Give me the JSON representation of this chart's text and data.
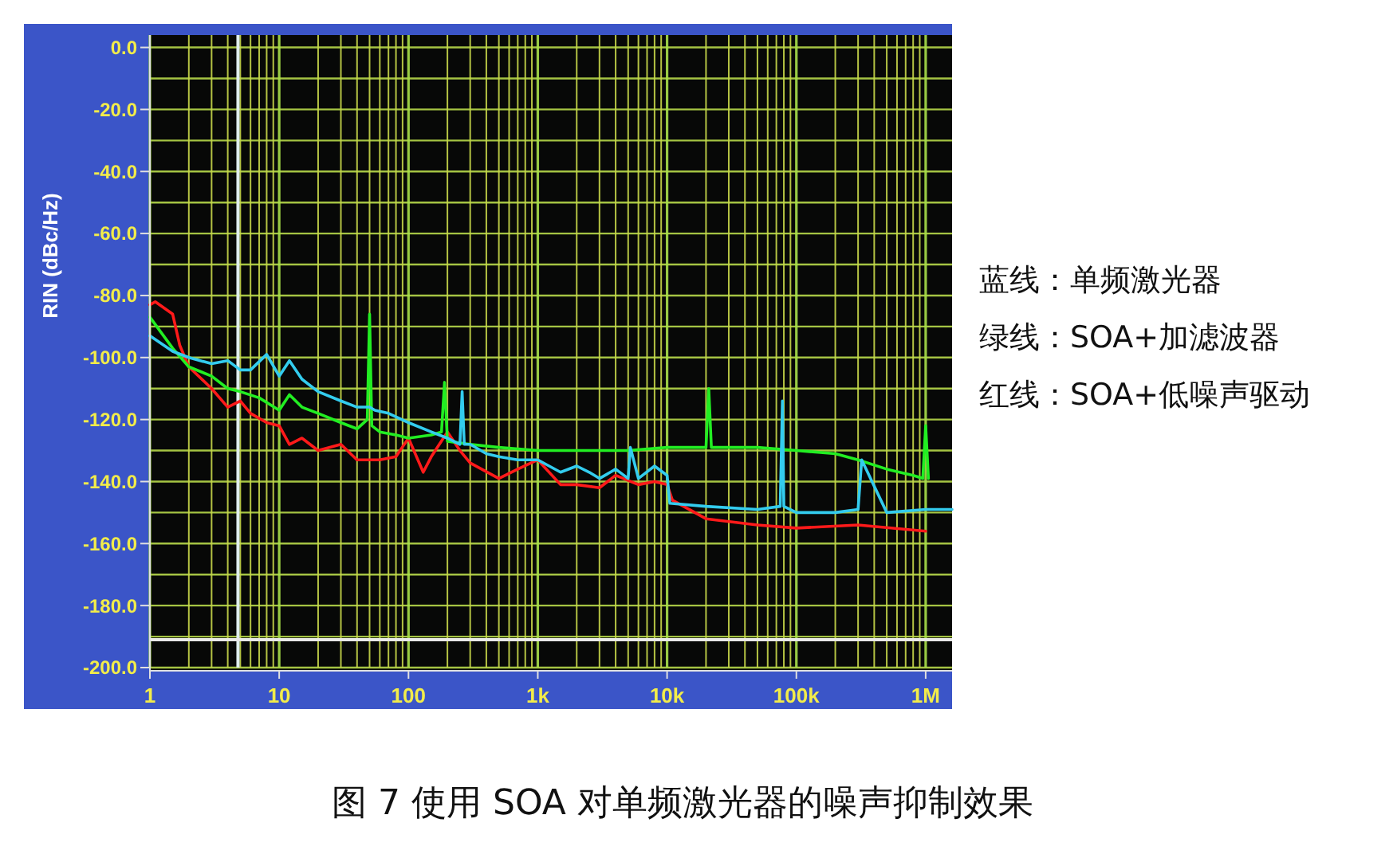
{
  "chart_data": {
    "type": "line",
    "title": "图 7  使用 SOA 对单频激光器的噪声抑制效果",
    "ylabel": "RIN (dBc/Hz)",
    "log": "x",
    "grid": true,
    "line_style": "solid",
    "marker": "none",
    "xlim": [
      1,
      1600000
    ],
    "ylim": [
      -200,
      4
    ],
    "xticks": [
      {
        "value": 1,
        "label": "1"
      },
      {
        "value": 2,
        "label": null
      },
      {
        "value": 3,
        "label": null
      },
      {
        "value": 4,
        "label": null
      },
      {
        "value": 5,
        "label": null
      },
      {
        "value": 6,
        "label": null
      },
      {
        "value": 7,
        "label": null
      },
      {
        "value": 8,
        "label": null
      },
      {
        "value": 9,
        "label": null
      },
      {
        "value": 10,
        "label": "10"
      },
      {
        "value": 20,
        "label": null
      },
      {
        "value": 30,
        "label": null
      },
      {
        "value": 40,
        "label": null
      },
      {
        "value": 50,
        "label": null
      },
      {
        "value": 60,
        "label": null
      },
      {
        "value": 70,
        "label": null
      },
      {
        "value": 80,
        "label": null
      },
      {
        "value": 90,
        "label": null
      },
      {
        "value": 100,
        "label": "100"
      },
      {
        "value": 200,
        "label": null
      },
      {
        "value": 300,
        "label": null
      },
      {
        "value": 400,
        "label": null
      },
      {
        "value": 500,
        "label": null
      },
      {
        "value": 600,
        "label": null
      },
      {
        "value": 700,
        "label": null
      },
      {
        "value": 800,
        "label": null
      },
      {
        "value": 900,
        "label": null
      },
      {
        "value": 1000,
        "label": "1k"
      },
      {
        "value": 2000,
        "label": null
      },
      {
        "value": 3000,
        "label": null
      },
      {
        "value": 4000,
        "label": null
      },
      {
        "value": 5000,
        "label": null
      },
      {
        "value": 6000,
        "label": null
      },
      {
        "value": 7000,
        "label": null
      },
      {
        "value": 8000,
        "label": null
      },
      {
        "value": 9000,
        "label": null
      },
      {
        "value": 10000,
        "label": "10k"
      },
      {
        "value": 20000,
        "label": null
      },
      {
        "value": 30000,
        "label": null
      },
      {
        "value": 40000,
        "label": null
      },
      {
        "value": 50000,
        "label": null
      },
      {
        "value": 60000,
        "label": null
      },
      {
        "value": 70000,
        "label": null
      },
      {
        "value": 80000,
        "label": null
      },
      {
        "value": 90000,
        "label": null
      },
      {
        "value": 100000,
        "label": "100k"
      },
      {
        "value": 200000,
        "label": null
      },
      {
        "value": 300000,
        "label": null
      },
      {
        "value": 400000,
        "label": null
      },
      {
        "value": 500000,
        "label": null
      },
      {
        "value": 600000,
        "label": null
      },
      {
        "value": 700000,
        "label": null
      },
      {
        "value": 800000,
        "label": null
      },
      {
        "value": 900000,
        "label": null
      },
      {
        "value": 1000000,
        "label": "1M"
      }
    ],
    "yticks": [
      {
        "value": 0,
        "label": "0.0"
      },
      {
        "value": -10,
        "label": null
      },
      {
        "value": -20,
        "label": "-20.0"
      },
      {
        "value": -30,
        "label": null
      },
      {
        "value": -40,
        "label": "-40.0"
      },
      {
        "value": -50,
        "label": null
      },
      {
        "value": -60,
        "label": "-60.0"
      },
      {
        "value": -70,
        "label": null
      },
      {
        "value": -80,
        "label": "-80.0"
      },
      {
        "value": -90,
        "label": null
      },
      {
        "value": -100,
        "label": "-100.0"
      },
      {
        "value": -110,
        "label": null
      },
      {
        "value": -120,
        "label": "-120.0"
      },
      {
        "value": -130,
        "label": null
      },
      {
        "value": -140,
        "label": "-140.0"
      },
      {
        "value": -150,
        "label": null
      },
      {
        "value": -160,
        "label": "-160.0"
      },
      {
        "value": -170,
        "label": null
      },
      {
        "value": -180,
        "label": "-180.0"
      },
      {
        "value": -190,
        "label": null
      },
      {
        "value": -200,
        "label": "-200.0"
      }
    ],
    "ref_lines": [
      {
        "axis": "x",
        "value": 4.8,
        "color": "#dfeeee"
      },
      {
        "axis": "y",
        "value": -191,
        "color": "#e8e8e8"
      }
    ],
    "annotations": [
      "蓝线：单频激光器",
      "绿线：SOA+加滤波器",
      "红线：SOA+低噪声驱动"
    ],
    "series": [
      {
        "color": "#ff1a1a",
        "x": [
          1,
          1.1,
          1.5,
          1.7,
          2,
          3,
          4,
          5,
          6,
          8,
          10,
          12,
          15,
          20,
          30,
          40,
          60,
          80,
          100,
          110,
          130,
          150,
          200,
          250,
          300,
          500,
          700,
          1000,
          1500,
          2000,
          3000,
          4000,
          6000,
          8000,
          10000,
          11000,
          20000,
          50000,
          100000,
          300000,
          1000000
        ],
        "values": [
          -83,
          -82,
          -86,
          -96,
          -103,
          -110,
          -116,
          -114,
          -118,
          -121,
          -122,
          -128,
          -126,
          -130,
          -128,
          -133,
          -133,
          -132,
          -126,
          -130,
          -137,
          -132,
          -124,
          -130,
          -134,
          -139,
          -136,
          -133,
          -141,
          -141,
          -142,
          -138,
          -141,
          -140,
          -141,
          -146,
          -152,
          -154,
          -155,
          -154,
          -156
        ]
      },
      {
        "color": "#22ee22",
        "x": [
          1,
          1.5,
          2,
          3,
          4,
          5,
          7,
          10,
          12,
          15,
          20,
          30,
          40,
          48,
          50,
          52,
          60,
          80,
          100,
          150,
          180,
          190,
          200,
          300,
          500,
          1000,
          2000,
          5000,
          10000,
          20000,
          21000,
          22000,
          50000,
          100000,
          200000,
          300000,
          500000,
          800000,
          950000,
          1000000,
          1050000
        ],
        "values": [
          -87,
          -97,
          -103,
          -106,
          -110,
          -111,
          -113,
          -117,
          -112,
          -116,
          -118,
          -121,
          -123,
          -120,
          -86,
          -122,
          -124,
          -125,
          -126,
          -125,
          -124,
          -108,
          -127,
          -128,
          -129,
          -130,
          -130,
          -130,
          -129,
          -129,
          -110,
          -129,
          -129,
          -130,
          -131,
          -133,
          -136,
          -138,
          -139,
          -122,
          -139
        ]
      },
      {
        "color": "#33ccee",
        "x": [
          1,
          1.5,
          2,
          3,
          4,
          5,
          6,
          8,
          10,
          12,
          15,
          20,
          30,
          40,
          50,
          55,
          70,
          100,
          150,
          200,
          250,
          260,
          270,
          300,
          400,
          500,
          700,
          1000,
          1500,
          2000,
          2500,
          3000,
          4000,
          5000,
          5200,
          6000,
          8000,
          10000,
          10500,
          20000,
          50000,
          75000,
          78000,
          80000,
          100000,
          200000,
          300000,
          320000,
          500000,
          1000000,
          1600000
        ],
        "values": [
          -93,
          -98,
          -100,
          -102,
          -101,
          -104,
          -104,
          -99,
          -106,
          -101,
          -107,
          -111,
          -114,
          -116,
          -116,
          -117,
          -118,
          -121,
          -124,
          -126,
          -128,
          -111,
          -128,
          -128,
          -131,
          -132,
          -133,
          -133,
          -137,
          -135,
          -137,
          -139,
          -136,
          -139,
          -129,
          -139,
          -135,
          -138,
          -147,
          -148,
          -149,
          -148,
          -114,
          -148,
          -150,
          -150,
          -149,
          -133,
          -150,
          -149,
          -149
        ]
      }
    ]
  }
}
